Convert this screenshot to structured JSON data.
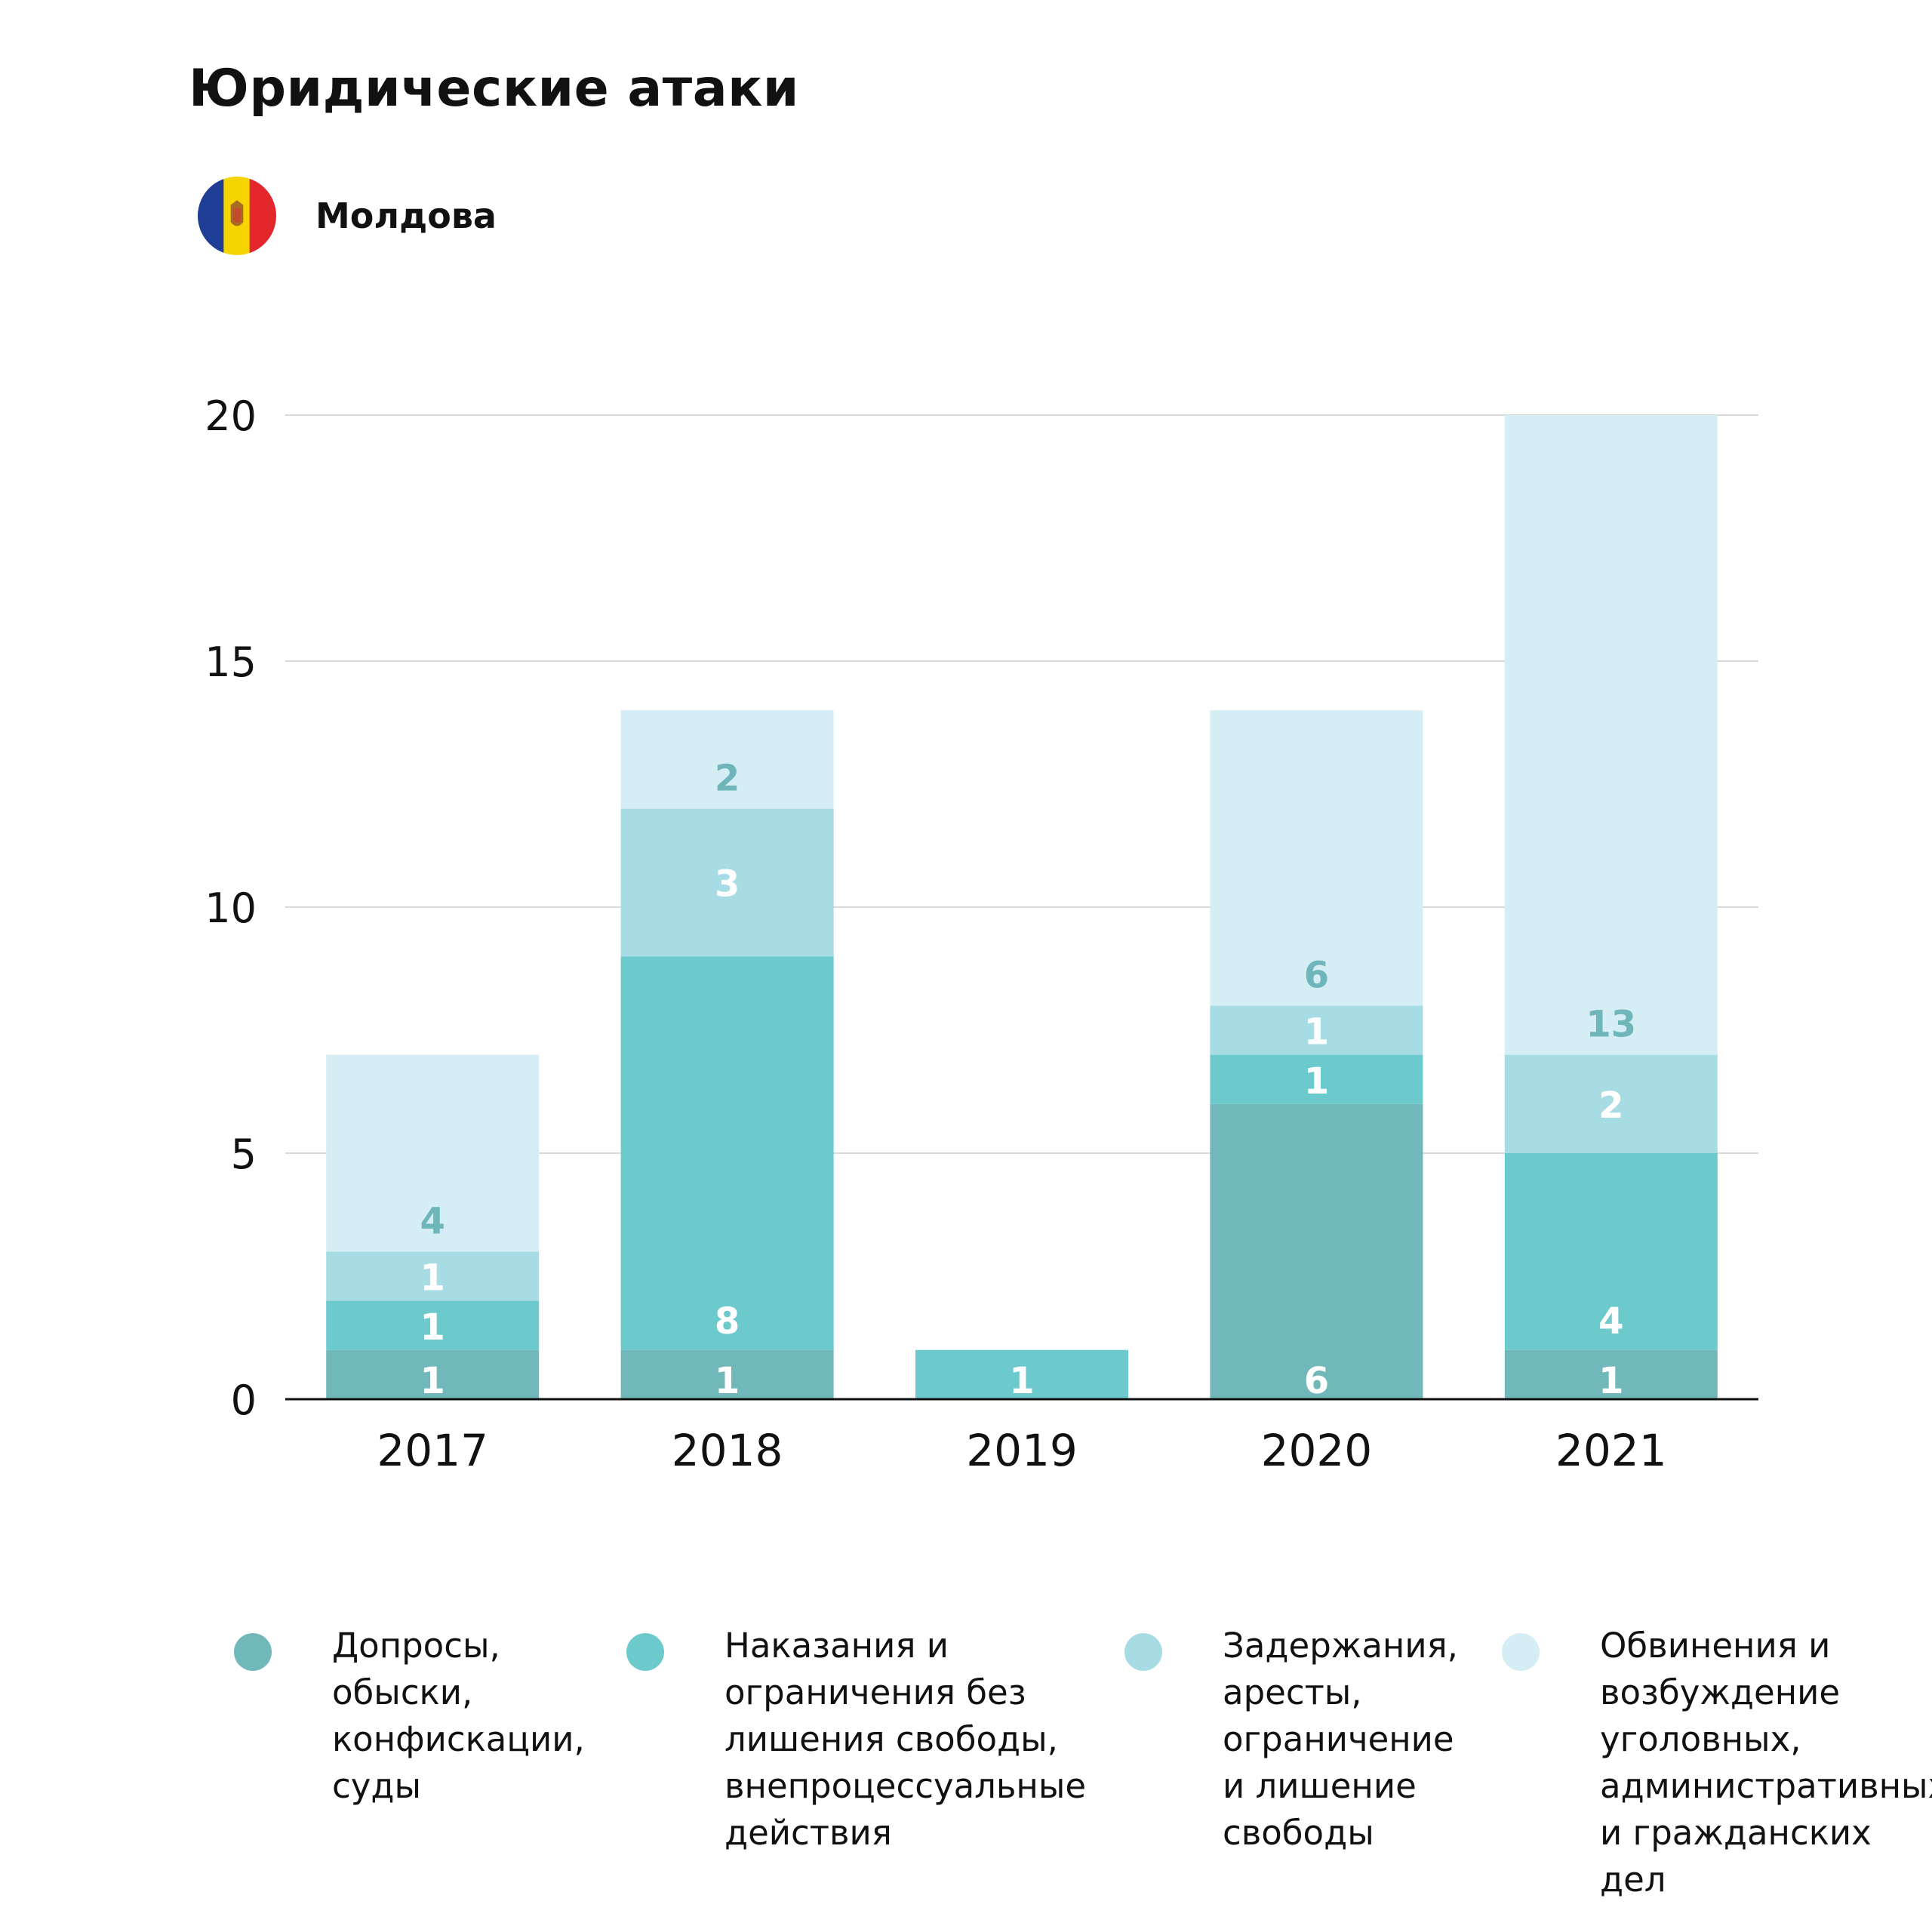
{
  "header": {
    "title": "Юридические атаки",
    "country": "Молдова"
  },
  "flag": {
    "colors": {
      "left": "#1f3f96",
      "middle": "#f5d400",
      "right": "#e3262b"
    },
    "icon": "moldova-flag-icon"
  },
  "colors": {
    "grid": "#d8d8d8",
    "axis": "#111111",
    "series": [
      "#71b8bb",
      "#6ccacd",
      "#a8dce5",
      "#d5edf4"
    ],
    "label_dark": "#6fb6ba",
    "label_light": "#ffffff"
  },
  "chart_data": {
    "type": "bar",
    "stacked": true,
    "categories": [
      "2017",
      "2018",
      "2019",
      "2020",
      "2021"
    ],
    "ylim": [
      0,
      20
    ],
    "yticks": [
      0,
      5,
      10,
      15,
      20
    ],
    "grid": true,
    "legend_position": "bottom",
    "series": [
      {
        "name": "Допросы,\nобыски,\nконфискации,\nсуды",
        "values": [
          1,
          1,
          0,
          6,
          1
        ]
      },
      {
        "name": "Наказания и\nограничения без\nлишения свободы,\nвнепроцессуальные\nдействия",
        "values": [
          1,
          8,
          1,
          1,
          4
        ]
      },
      {
        "name": "Задержания,\nаресты,\nограничение\nи лишение\nсвободы",
        "values": [
          1,
          3,
          0,
          1,
          2
        ]
      },
      {
        "name": "Обвинения и\nвозбуждение\nуголовных,\nадминистративных\nи гражданских дел",
        "values": [
          4,
          2,
          0,
          6,
          13
        ]
      }
    ]
  }
}
